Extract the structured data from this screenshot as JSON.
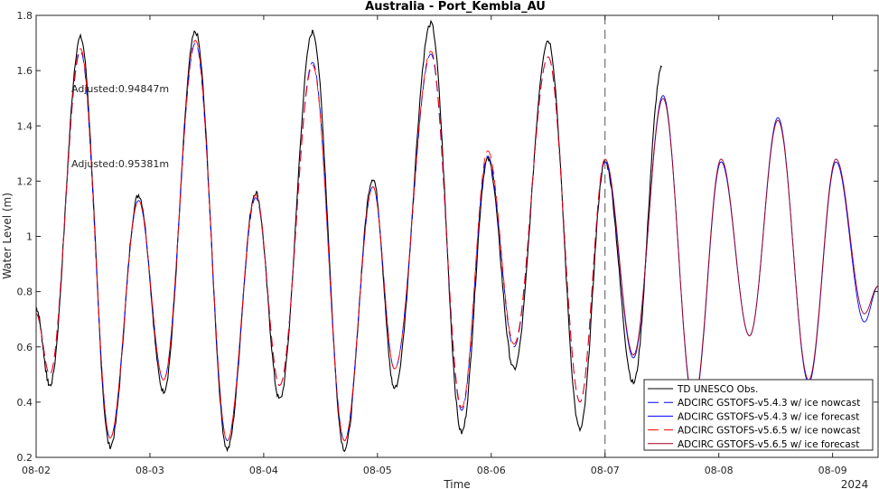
{
  "chart_data": {
    "type": "line",
    "title": "Australia - Port_Kembla_AU",
    "xlabel": "Time",
    "ylabel": "Water Level (m)",
    "year_label": "2024",
    "ylim": [
      0.2,
      1.8
    ],
    "yticks": [
      "0.2",
      "0.4",
      "0.6",
      "0.8",
      "1",
      "1.2",
      "1.4",
      "1.6",
      "1.8"
    ],
    "xticks": [
      "08-02",
      "08-03",
      "08-04",
      "08-05",
      "08-06",
      "08-07",
      "08-08",
      "08-09"
    ],
    "xlim_days": [
      0,
      7.4
    ],
    "nowcast_forecast_divider_day": 5,
    "grid": false,
    "legend_position": "bottom-right",
    "annotations": [
      {
        "text": "Adjusted:0.94847m",
        "color": "#0000ff"
      },
      {
        "text": "Adjusted:0.95381m",
        "color": "#ff0000"
      }
    ],
    "series": [
      {
        "name": "TD UNESCO Obs.",
        "color": "#000000",
        "style": "solid",
        "extrema": [
          [
            0,
            0.74
          ],
          [
            0.12,
            0.46
          ],
          [
            0.39,
            1.72
          ],
          [
            0.65,
            0.24
          ],
          [
            0.9,
            1.15
          ],
          [
            1.12,
            0.44
          ],
          [
            1.4,
            1.74
          ],
          [
            1.68,
            0.23
          ],
          [
            1.93,
            1.16
          ],
          [
            2.14,
            0.41
          ],
          [
            2.43,
            1.74
          ],
          [
            2.71,
            0.23
          ],
          [
            2.96,
            1.21
          ],
          [
            3.15,
            0.45
          ],
          [
            3.47,
            1.77
          ],
          [
            3.74,
            0.29
          ],
          [
            3.97,
            1.28
          ],
          [
            4.2,
            0.52
          ],
          [
            4.5,
            1.71
          ],
          [
            4.78,
            0.3
          ],
          [
            5.0,
            1.27
          ],
          [
            5.25,
            0.47
          ],
          [
            5.5,
            1.61
          ]
        ]
      },
      {
        "name": "ADCIRC GSTOFS-v5.4.3 w/ ice nowcast",
        "color": "#0000ff",
        "style": "dashed",
        "extrema": [
          [
            0,
            0.72
          ],
          [
            0.12,
            0.5
          ],
          [
            0.39,
            1.67
          ],
          [
            0.65,
            0.27
          ],
          [
            0.9,
            1.13
          ],
          [
            1.12,
            0.48
          ],
          [
            1.4,
            1.7
          ],
          [
            1.68,
            0.26
          ],
          [
            1.93,
            1.14
          ],
          [
            2.14,
            0.46
          ],
          [
            2.43,
            1.63
          ],
          [
            2.71,
            0.26
          ],
          [
            2.96,
            1.18
          ],
          [
            3.15,
            0.52
          ],
          [
            3.47,
            1.66
          ],
          [
            3.74,
            0.37
          ],
          [
            3.97,
            1.29
          ],
          [
            4.2,
            0.6
          ],
          [
            4.5,
            1.65
          ],
          [
            4.78,
            0.4
          ],
          [
            5.0,
            1.27
          ]
        ]
      },
      {
        "name": "ADCIRC GSTOFS-v5.4.3 w/ ice forecast",
        "color": "#0000ff",
        "style": "solid",
        "extrema": [
          [
            5.0,
            1.27
          ],
          [
            5.25,
            0.56
          ],
          [
            5.51,
            1.51
          ],
          [
            5.78,
            0.39
          ],
          [
            6.02,
            1.27
          ],
          [
            6.27,
            0.64
          ],
          [
            6.52,
            1.43
          ],
          [
            6.79,
            0.47
          ],
          [
            7.03,
            1.27
          ],
          [
            7.28,
            0.69
          ],
          [
            7.4,
            0.82
          ]
        ]
      },
      {
        "name": "ADCIRC GSTOFS-v5.6.5 w/ ice nowcast",
        "color": "#ff0000",
        "style": "dashed",
        "extrema": [
          [
            0,
            0.72
          ],
          [
            0.12,
            0.5
          ],
          [
            0.39,
            1.68
          ],
          [
            0.65,
            0.27
          ],
          [
            0.9,
            1.13
          ],
          [
            1.12,
            0.48
          ],
          [
            1.4,
            1.71
          ],
          [
            1.68,
            0.26
          ],
          [
            1.93,
            1.15
          ],
          [
            2.14,
            0.46
          ],
          [
            2.43,
            1.62
          ],
          [
            2.71,
            0.26
          ],
          [
            2.96,
            1.18
          ],
          [
            3.15,
            0.52
          ],
          [
            3.47,
            1.67
          ],
          [
            3.74,
            0.38
          ],
          [
            3.97,
            1.31
          ],
          [
            4.2,
            0.61
          ],
          [
            4.5,
            1.65
          ],
          [
            4.78,
            0.4
          ],
          [
            5.0,
            1.28
          ]
        ]
      },
      {
        "name": "ADCIRC GSTOFS-v5.6.5 w/ ice forecast",
        "color": "#a0001a",
        "style": "solid",
        "extrema": [
          [
            5.0,
            1.28
          ],
          [
            5.25,
            0.57
          ],
          [
            5.51,
            1.5
          ],
          [
            5.78,
            0.4
          ],
          [
            6.02,
            1.28
          ],
          [
            6.27,
            0.64
          ],
          [
            6.52,
            1.42
          ],
          [
            6.79,
            0.48
          ],
          [
            7.03,
            1.28
          ],
          [
            7.28,
            0.72
          ],
          [
            7.4,
            0.82
          ]
        ]
      }
    ]
  }
}
